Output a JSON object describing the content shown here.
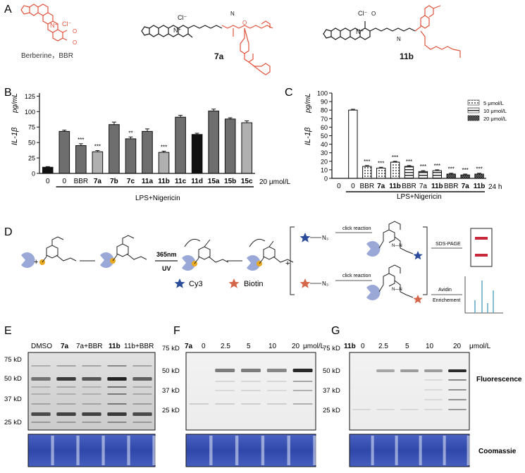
{
  "panels": {
    "A": "A",
    "B": "B",
    "C": "C",
    "D": "D",
    "E": "E",
    "F": "F",
    "G": "G"
  },
  "compounds": {
    "berberine": "Berberine，BBR",
    "c7a": "7a",
    "c11b": "11b",
    "chloride": "Cl⁻",
    "nplus": "N⁺",
    "atom_N": "N",
    "atom_O": "O",
    "methoxy": "O"
  },
  "colors": {
    "chem_black": "#1a1a1a",
    "chem_red": "#e0533c",
    "bar_dark": "#303030",
    "bar_mid": "#6e6e6e",
    "bar_light": "#b0b0b0",
    "gel_stain": "#3c5ab5",
    "band": "#1e1e1e",
    "cy3_star": "#2b4b9b",
    "biotin_star": "#d4664a",
    "probe_dot": "#e8a820",
    "protein": "#9aa8d8",
    "ms_peaks": "#5aa8c8",
    "sds_bands": "#c8283c"
  },
  "chart_data": [
    {
      "type": "bar",
      "panel": "B",
      "ylabel": "IL-1β",
      "yunit": "pg/mL",
      "ylim": [
        0,
        130
      ],
      "yticks": [
        0,
        25,
        50,
        75,
        100,
        125
      ],
      "categories": [
        "0",
        "0",
        "BBR",
        "7a",
        "7b",
        "7c",
        "11a",
        "11b",
        "11c",
        "11d",
        "15a",
        "15b",
        "15c"
      ],
      "bold_categories": [
        false,
        false,
        false,
        true,
        true,
        true,
        true,
        true,
        true,
        true,
        true,
        true,
        true
      ],
      "values": [
        10,
        68,
        45,
        35,
        79,
        56,
        68,
        34,
        91,
        63,
        101,
        88,
        82
      ],
      "errors": [
        1,
        2,
        3,
        2,
        4,
        3,
        4,
        2,
        3,
        2,
        3,
        2,
        3
      ],
      "fills": [
        "black",
        "mid",
        "mid",
        "light",
        "mid",
        "mid",
        "mid",
        "light",
        "mid",
        "black",
        "mid",
        "mid",
        "light"
      ],
      "significance": [
        "",
        "",
        "***",
        "***",
        "",
        "**",
        "",
        "***",
        "",
        "",
        "",
        "",
        ""
      ],
      "concentration_label": "20 μmol/L",
      "treatment_label": "LPS+Nigericin"
    },
    {
      "type": "bar",
      "panel": "C",
      "ylabel": "IL-1β",
      "yunit": "pg/mL",
      "ylim": [
        0,
        100
      ],
      "yticks": [
        0,
        10,
        20,
        30,
        40,
        50,
        60,
        70,
        80,
        90,
        100
      ],
      "categories": [
        "0",
        "0",
        "BBR",
        "7a",
        "11b",
        "BBR",
        "7a",
        "11b",
        "BBR",
        "7a",
        "11b"
      ],
      "bold_categories": [
        false,
        false,
        false,
        true,
        true,
        false,
        false,
        true,
        false,
        true,
        true
      ],
      "values": [
        0,
        80,
        14,
        12,
        19,
        14,
        8,
        9,
        5,
        4,
        5
      ],
      "errors": [
        0,
        1,
        1,
        1,
        1,
        1,
        1,
        1,
        1,
        1,
        1
      ],
      "fills": [
        "none",
        "white",
        "dots",
        "dots",
        "dots",
        "lines",
        "lines",
        "lines",
        "dense",
        "dense",
        "dense"
      ],
      "significance": [
        "",
        "",
        "***",
        "***",
        "***",
        "***",
        "***",
        "***",
        "***",
        "***",
        "***"
      ],
      "legend": [
        "5 μmol/L",
        "10 μmol/L",
        "20 μmol/L"
      ],
      "time_label": "24 h",
      "treatment_label": "LPS+Nigericin"
    }
  ],
  "schematic": {
    "uv_top": "365nm",
    "uv_bottom": "UV",
    "click1": "click reaction",
    "click2": "click reaction",
    "sds": "SDS-PAGE",
    "avidin": "Avidin",
    "enrich": "Enrichement",
    "n3": "N₃",
    "cy3": "Cy3",
    "biotin": "Biotin",
    "triazole": "N—N"
  },
  "gels": {
    "E": {
      "lanes": [
        "DMSO",
        "7a",
        "7a+BBR",
        "11b",
        "11b+BBR"
      ],
      "markers": [
        "75 kD",
        "50 kD",
        "37 kD",
        "25 kD"
      ]
    },
    "F": {
      "compound": "7a",
      "lanes": [
        "0",
        "2.5",
        "5",
        "10",
        "20"
      ],
      "unit": "μmol/L",
      "markers": [
        "75 kD",
        "50 kD",
        "37 kD",
        "25 kD"
      ]
    },
    "G": {
      "compound": "11b",
      "lanes": [
        "0",
        "2.5",
        "5",
        "10",
        "20"
      ],
      "unit": "μmol/L",
      "markers": [
        "75 kD",
        "50 kD",
        "37 kD",
        "25 kD"
      ],
      "fluorescence": "Fluorescence",
      "coomassie": "Coomassie"
    }
  }
}
